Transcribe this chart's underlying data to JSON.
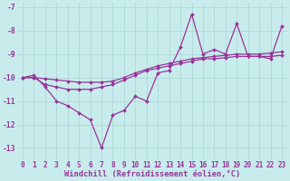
{
  "xlabel": "Windchill (Refroidissement éolien,°C)",
  "background_color": "#c8ecec",
  "line_color": "#993399",
  "grid_color": "#b0d8d8",
  "x_values": [
    0,
    1,
    2,
    3,
    4,
    5,
    6,
    7,
    8,
    9,
    10,
    11,
    12,
    13,
    14,
    15,
    16,
    17,
    18,
    19,
    20,
    21,
    22,
    23
  ],
  "line1_y": [
    -10.0,
    -9.9,
    -10.4,
    -11.0,
    -11.2,
    -11.5,
    -11.8,
    -13.0,
    -11.6,
    -11.4,
    -10.8,
    -11.0,
    -9.8,
    -9.7,
    -8.7,
    -7.3,
    -9.0,
    -8.8,
    -9.0,
    -7.7,
    -9.1,
    -9.1,
    -9.2,
    -7.8
  ],
  "line2_y": [
    -10.0,
    -10.0,
    -10.3,
    -10.4,
    -10.5,
    -10.5,
    -10.5,
    -10.4,
    -10.3,
    -10.1,
    -9.9,
    -9.7,
    -9.6,
    -9.5,
    -9.4,
    -9.3,
    -9.2,
    -9.2,
    -9.15,
    -9.1,
    -9.1,
    -9.1,
    -9.1,
    -9.05
  ],
  "line3_y": [
    -10.0,
    -10.0,
    -10.05,
    -10.1,
    -10.15,
    -10.2,
    -10.2,
    -10.2,
    -10.15,
    -10.0,
    -9.8,
    -9.65,
    -9.5,
    -9.4,
    -9.3,
    -9.2,
    -9.15,
    -9.1,
    -9.05,
    -9.0,
    -9.0,
    -9.0,
    -8.95,
    -8.9
  ],
  "ylim": [
    -13.5,
    -6.8
  ],
  "xlim": [
    -0.5,
    23.5
  ],
  "yticks": [
    -13,
    -12,
    -11,
    -10,
    -9,
    -8,
    -7
  ],
  "xticks": [
    0,
    1,
    2,
    3,
    4,
    5,
    6,
    7,
    8,
    9,
    10,
    11,
    12,
    13,
    14,
    15,
    16,
    17,
    18,
    19,
    20,
    21,
    22,
    23
  ],
  "tick_fontsize": 5.5,
  "xlabel_fontsize": 6.2
}
